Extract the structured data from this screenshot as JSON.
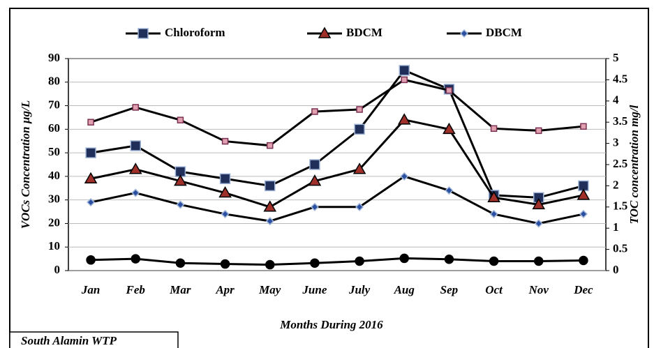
{
  "chart_data": {
    "type": "line",
    "x_label": "Months During 2016",
    "y_label": "VOCs Concentration  µg/L",
    "y2_label": "TOC concentration  mg/l",
    "annotation": "South Alamin WTP",
    "categories": [
      "Jan",
      "Feb",
      "Mar",
      "Apr",
      "May",
      "June",
      "July",
      "Aug",
      "Sep",
      "Oct",
      "Nov",
      "Dec"
    ],
    "ylim": [
      0,
      90
    ],
    "yticks": [
      0,
      10,
      20,
      30,
      40,
      50,
      60,
      70,
      80,
      90
    ],
    "y2lim": [
      0,
      5
    ],
    "y2ticks": [
      0,
      0.5,
      1,
      1.5,
      2,
      2.5,
      3,
      3.5,
      4,
      4.5,
      5
    ],
    "grid": true,
    "legend": "top",
    "series": [
      {
        "name": "Chloroform",
        "color": "#000000",
        "marker": "square",
        "marker_color": "#1f2f5a",
        "marker_edge": "#9fb4d6",
        "values": [
          50,
          53,
          42,
          39,
          36,
          45,
          60,
          85,
          77,
          32,
          31,
          36
        ]
      },
      {
        "name": "BDCM",
        "color": "#000000",
        "marker": "triangle",
        "marker_color": "#a0302a",
        "marker_edge": "#000000",
        "values": [
          39,
          43,
          38,
          33,
          27,
          38,
          43,
          64,
          60,
          31,
          28,
          32
        ]
      },
      {
        "name": "DBCM",
        "color": "#000000",
        "marker": "diamond",
        "marker_color": "#2a4fa0",
        "marker_edge": "#9fb4d6",
        "values": [
          29,
          33,
          28,
          24,
          21,
          27,
          27,
          40,
          34,
          24,
          20,
          24
        ]
      },
      {
        "color": "#000000",
        "marker": "smallsquare",
        "marker_color": "#e0a0b0",
        "marker_edge": "#7a3050",
        "axis": "y2",
        "values": [
          3.5,
          3.85,
          3.55,
          3.05,
          2.95,
          3.75,
          3.8,
          4.5,
          4.25,
          3.35,
          3.3,
          3.4
        ]
      },
      {
        "color": "#000000",
        "marker": "circle",
        "marker_color": "#000000",
        "marker_edge": "#000000",
        "values": [
          4.5,
          5,
          3.2,
          2.8,
          2.5,
          3.2,
          4,
          5.2,
          4.8,
          4,
          4,
          4.3
        ]
      }
    ]
  }
}
